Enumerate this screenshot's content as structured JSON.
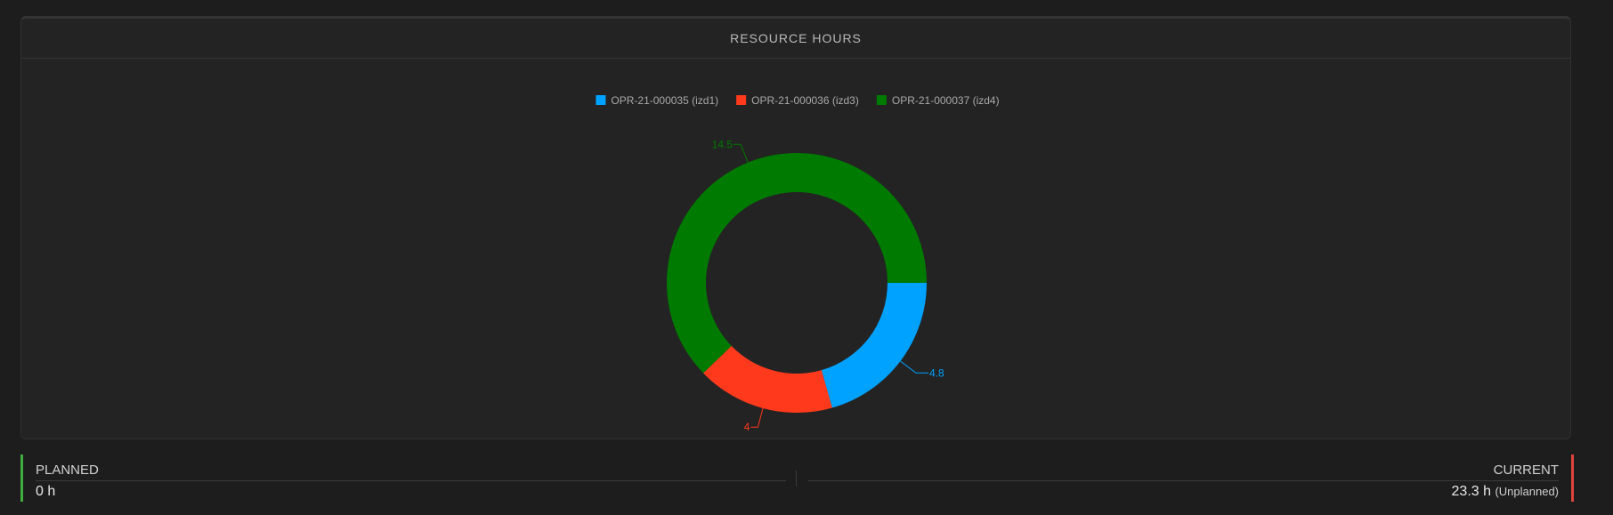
{
  "panel": {
    "title": "RESOURCE HOURS"
  },
  "chart_data": {
    "type": "pie",
    "donut": true,
    "title": "RESOURCE HOURS",
    "legend_position": "top",
    "series": [
      {
        "name": "OPR-21-000035 (izd1)",
        "value": 4.8,
        "label": "4.8",
        "color": "#00a2ff"
      },
      {
        "name": "OPR-21-000036 (izd3)",
        "value": 4,
        "label": "4",
        "color": "#ff3a1c"
      },
      {
        "name": "OPR-21-000037 (izd4)",
        "value": 14.5,
        "label": "14.5",
        "color": "#007a00"
      }
    ]
  },
  "stats": {
    "planned": {
      "label": "PLANNED",
      "value": "0 h",
      "color": "#3fae3f"
    },
    "current": {
      "label": "CURRENT",
      "value": "23.3 h",
      "note": "(Unplanned)",
      "color": "#e0443a"
    }
  }
}
